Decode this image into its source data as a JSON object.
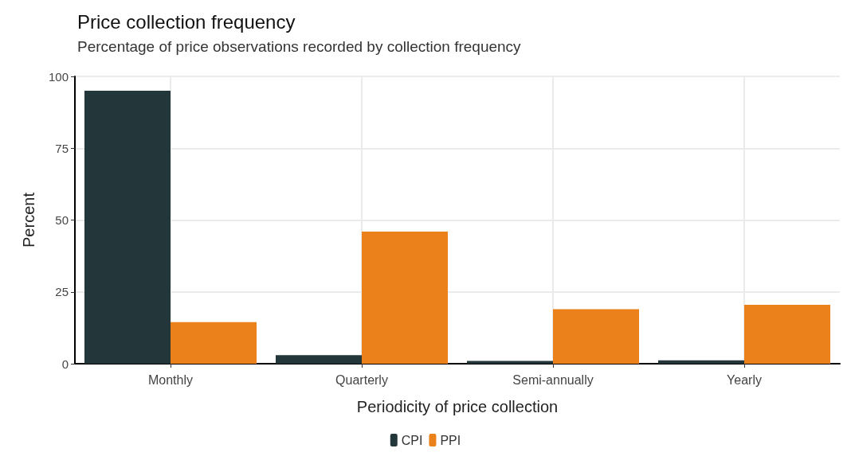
{
  "chart_data": {
    "type": "bar",
    "title": "Price collection frequency",
    "subtitle": "Percentage of price observations recorded by collection frequency",
    "xlabel": "Periodicity of price collection",
    "ylabel": "Percent",
    "categories": [
      "Monthly",
      "Quarterly",
      "Semi-annually",
      "Yearly"
    ],
    "series": [
      {
        "name": "CPI",
        "color": "#23373b",
        "values": [
          95,
          3,
          1,
          1.2
        ]
      },
      {
        "name": "PPI",
        "color": "#eb811b",
        "values": [
          14.5,
          46,
          19,
          20.5
        ]
      }
    ],
    "ylim": [
      0,
      100
    ],
    "yticks": [
      0,
      25,
      50,
      75,
      100
    ],
    "grid": true,
    "legend": "bottom"
  }
}
